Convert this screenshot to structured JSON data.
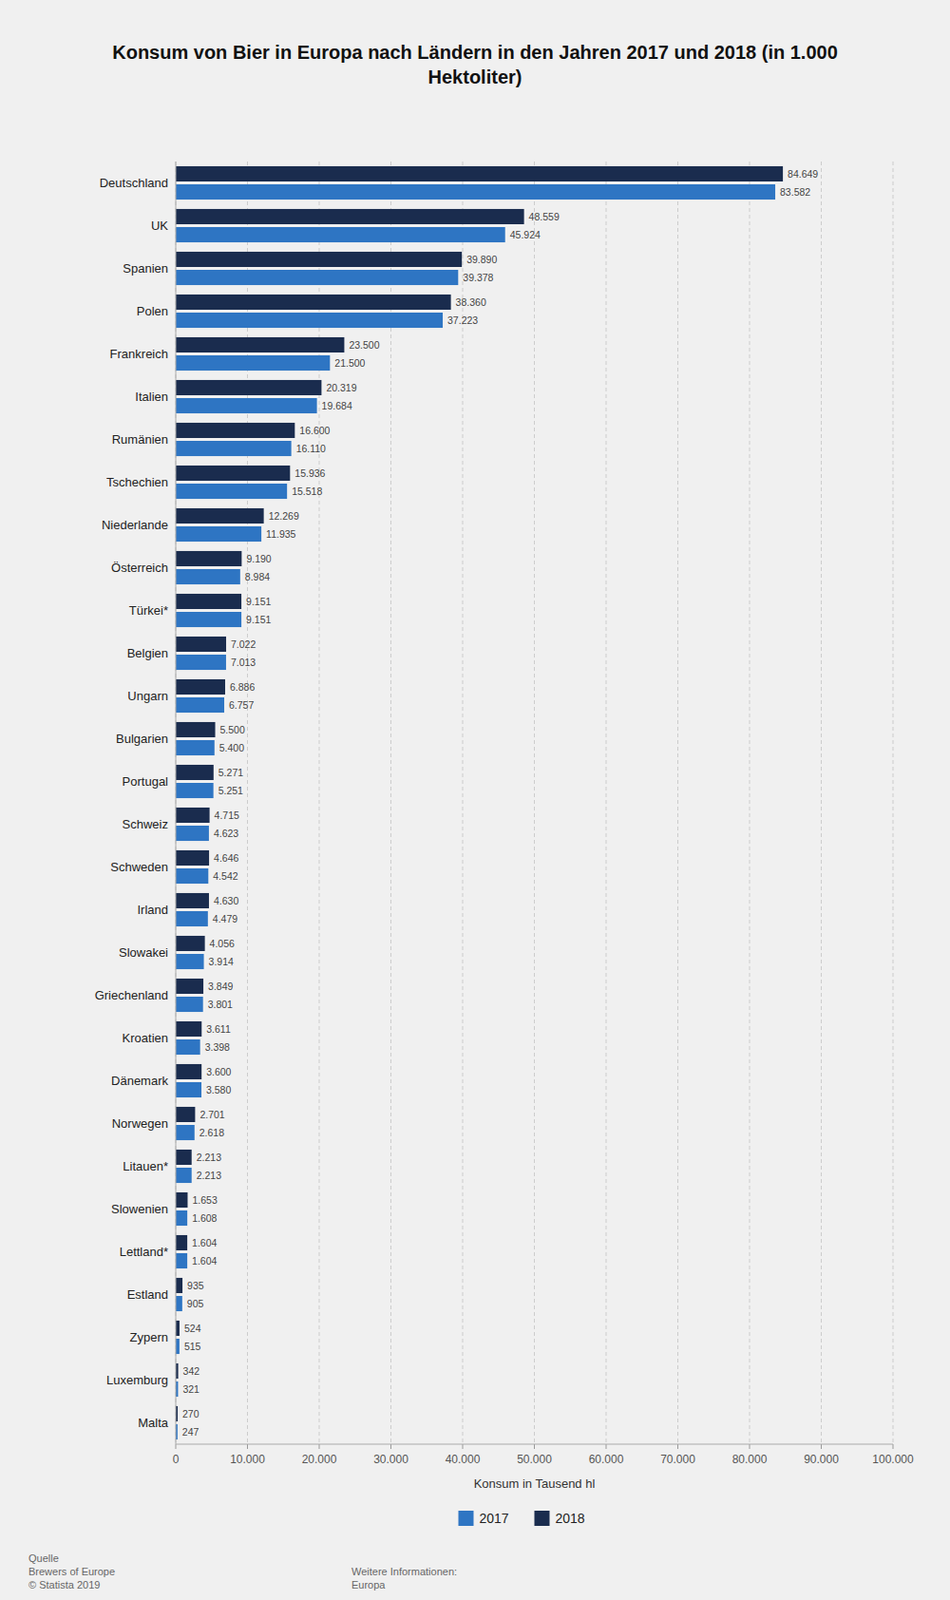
{
  "chart_data": {
    "type": "bar",
    "orientation": "horizontal",
    "title": "Konsum von Bier in Europa nach Ländern in den Jahren 2017 und 2018 (in 1.000\nHektoliter)",
    "xlabel": "Konsum in Tausend hl",
    "categories": [
      "Deutschland",
      "UK",
      "Spanien",
      "Polen",
      "Frankreich",
      "Italien",
      "Rumänien",
      "Tschechien",
      "Niederlande",
      "Österreich",
      "Türkei*",
      "Belgien",
      "Ungarn",
      "Bulgarien",
      "Portugal",
      "Schweiz",
      "Schweden",
      "Irland",
      "Slowakei",
      "Griechenland",
      "Kroatien",
      "Dänemark",
      "Norwegen",
      "Litauen*",
      "Slowenien",
      "Lettland*",
      "Estland",
      "Zypern",
      "Luxemburg",
      "Malta"
    ],
    "series": [
      {
        "name": "2017",
        "color": "#2e75c3",
        "values": [
          83582,
          45924,
          39378,
          37223,
          21500,
          19684,
          16110,
          15518,
          11935,
          8984,
          9151,
          7013,
          6757,
          5400,
          5251,
          4623,
          4542,
          4479,
          3914,
          3801,
          3398,
          3580,
          2618,
          2213,
          1608,
          1604,
          905,
          515,
          321,
          247
        ],
        "value_labels": [
          "83.582",
          "45.924",
          "39.378",
          "37.223",
          "21.500",
          "19.684",
          "16.110",
          "15.518",
          "11.935",
          "8.984",
          "9.151",
          "7.013",
          "6.757",
          "5.400",
          "5.251",
          "4.623",
          "4.542",
          "4.479",
          "3.914",
          "3.801",
          "3.398",
          "3.580",
          "2.618",
          "2.213",
          "1.608",
          "1.604",
          "905",
          "515",
          "321",
          "247"
        ]
      },
      {
        "name": "2018",
        "color": "#1a2c4e",
        "values": [
          84649,
          48559,
          39890,
          38360,
          23500,
          20319,
          16600,
          15936,
          12269,
          9190,
          9151,
          7022,
          6886,
          5500,
          5271,
          4715,
          4646,
          4630,
          4056,
          3849,
          3611,
          3600,
          2701,
          2213,
          1653,
          1604,
          935,
          524,
          342,
          270
        ],
        "value_labels": [
          "84.649",
          "48.559",
          "39.890",
          "38.360",
          "23.500",
          "20.319",
          "16.600",
          "15.936",
          "12.269",
          "9.190",
          "9.151",
          "7.022",
          "6.886",
          "5.500",
          "5.271",
          "4.715",
          "4.646",
          "4.630",
          "4.056",
          "3.849",
          "3.611",
          "3.600",
          "2.701",
          "2.213",
          "1.653",
          "1.604",
          "935",
          "524",
          "342",
          "270"
        ]
      }
    ],
    "xlim": [
      0,
      100000
    ],
    "xticks": [
      0,
      {
        "value": 10000,
        "label": "10.000"
      },
      {
        "value": 20000,
        "label": "20.000"
      },
      {
        "value": 30000,
        "label": "30.000"
      },
      {
        "value": 40000,
        "label": "40.000"
      },
      {
        "value": 50000,
        "label": "50.000"
      },
      {
        "value": 60000,
        "label": "60.000"
      },
      {
        "value": 70000,
        "label": "70.000"
      },
      {
        "value": 80000,
        "label": "80.000"
      },
      {
        "value": 90000,
        "label": "90.000"
      },
      {
        "value": 100000,
        "label": "100.000"
      }
    ],
    "grid": true,
    "data_labels": true,
    "legend": "bottom",
    "annotations": [
      "Quelle\nBrewers of Europe\n© Statista 2019",
      "Weitere Informationen:\nEuropa"
    ]
  }
}
